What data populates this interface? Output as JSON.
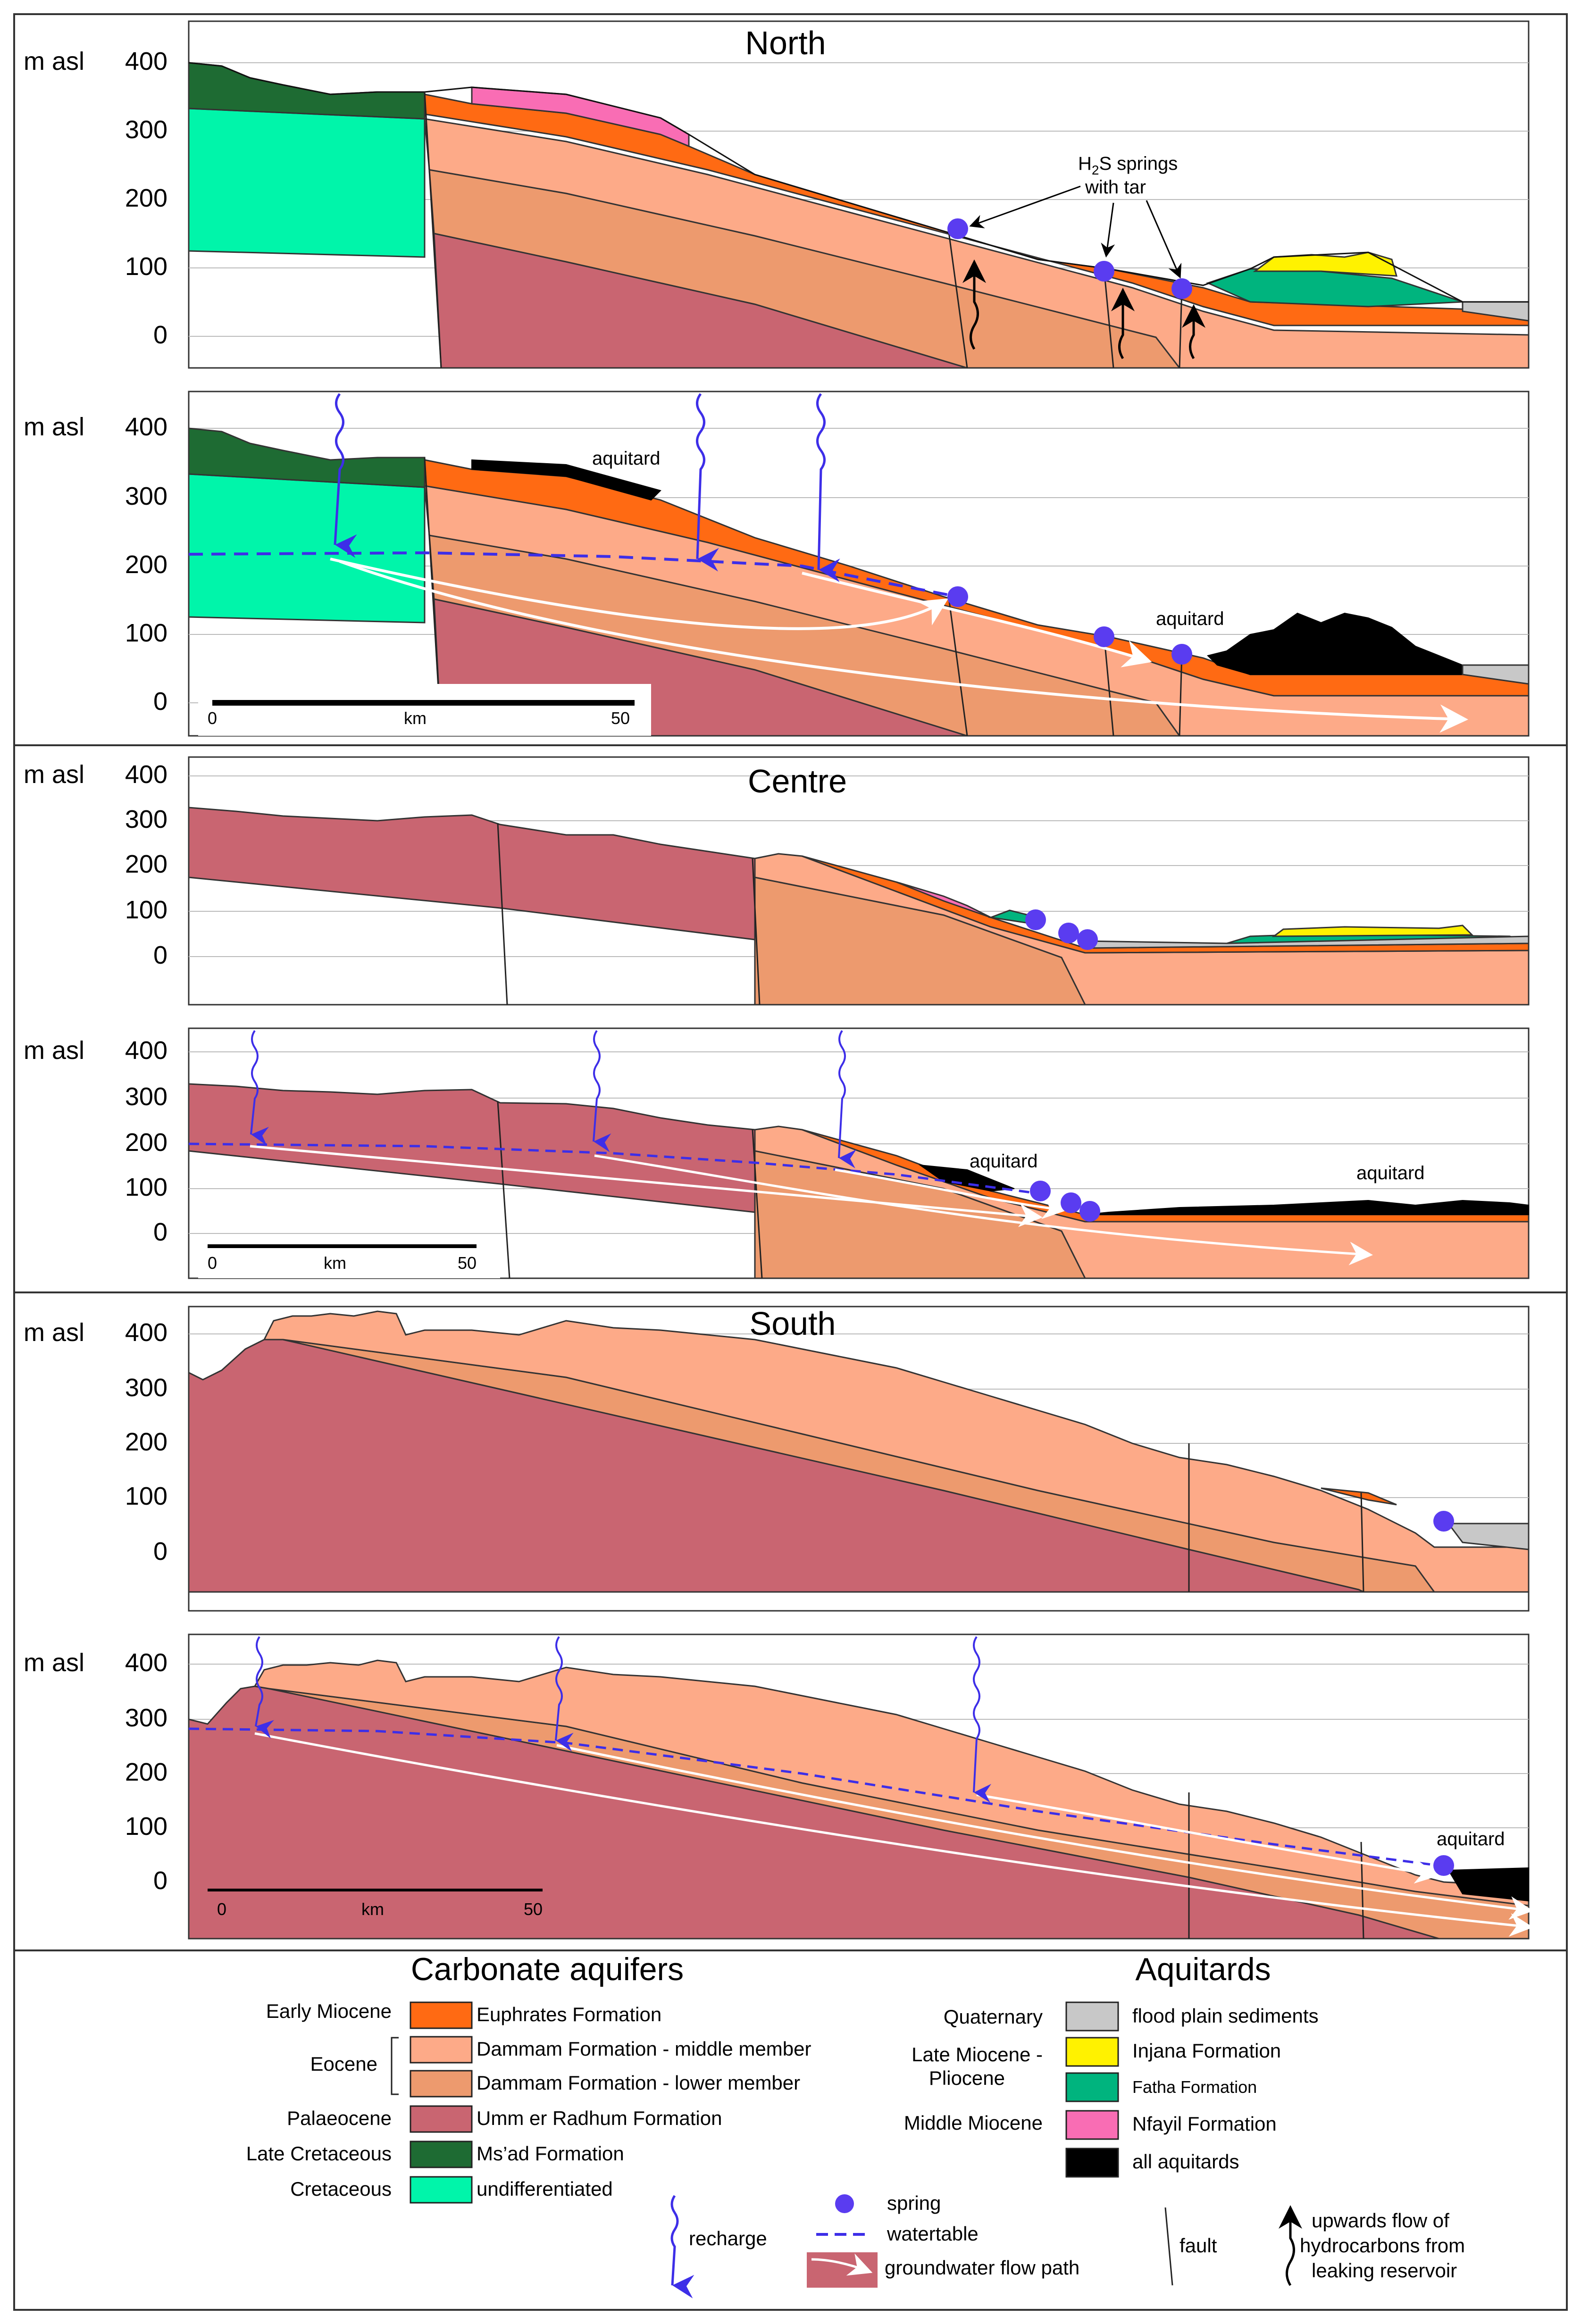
{
  "colors": {
    "euphrates": "#FF6A13",
    "dammam_middle": "#FDAA88",
    "dammam_lower": "#ED9A6E",
    "umm_er_radhum": "#C96571",
    "msad": "#1E6B33",
    "undifferentiated": "#00F5AA",
    "flood_plain": "#C8C8C8",
    "injana": "#FFF200",
    "fatha": "#00B47E",
    "nfayil": "#F96DB4",
    "aquitard": "#000000",
    "spring": "#5A3CF0",
    "watertable": "#3D2EE8",
    "flow": "#FFFFFF",
    "grid": "#BBBBBB"
  },
  "axis": {
    "unit_label": "m asl",
    "ticks": [
      "400",
      "300",
      "200",
      "100",
      "0"
    ]
  },
  "scale_bar": {
    "start": "0",
    "unit": "km",
    "end": "50"
  },
  "panels": {
    "north_geology": {
      "title": "North",
      "h2s_label_main": "H",
      "h2s_label_sub": "2",
      "h2s_label_rest": "S springs",
      "h2s_label_line2": "with tar"
    },
    "north_hydro": {
      "aquitard_label_1": "aquitard",
      "aquitard_label_2": "aquitard"
    },
    "centre_geology": {
      "title": "Centre"
    },
    "centre_hydro": {
      "aquitard_label_1": "aquitard",
      "aquitard_label_2": "aquitard"
    },
    "south_geology": {
      "title": "South"
    },
    "south_hydro": {
      "aquitard_label_1": "aquitard"
    }
  },
  "legend": {
    "aquifers_title": "Carbonate aquifers",
    "aquitards_title": "Aquitards",
    "aquifers": [
      {
        "age": "Early Miocene",
        "name": "Euphrates Formation"
      },
      {
        "age": "Eocene",
        "name": "Dammam Formation - middle member"
      },
      {
        "age": "",
        "name": "Dammam Formation - lower member"
      },
      {
        "age": "Palaeocene",
        "name": "Umm er Radhum Formation"
      },
      {
        "age": "Late Cretaceous",
        "name": "Ms’ad Formation"
      },
      {
        "age": "Cretaceous",
        "name": "undifferentiated"
      }
    ],
    "aquitards": [
      {
        "age": "Quaternary",
        "name": "flood plain sediments"
      },
      {
        "age": "Late Miocene -",
        "age2": "Pliocene",
        "name": "Injana Formation"
      },
      {
        "age": "",
        "name": "Fatha Formation"
      },
      {
        "age": "Middle Miocene",
        "name": "Nfayil Formation"
      },
      {
        "age": "",
        "name": "all aquitards"
      }
    ],
    "symbols": {
      "recharge": "recharge",
      "spring": "spring",
      "watertable": "watertable",
      "flow_path": "groundwater flow path",
      "fault": "fault",
      "upflow_line1": "upwards flow of",
      "upflow_line2": "hydrocarbons from",
      "upflow_line3": "leaking reservoir"
    }
  }
}
